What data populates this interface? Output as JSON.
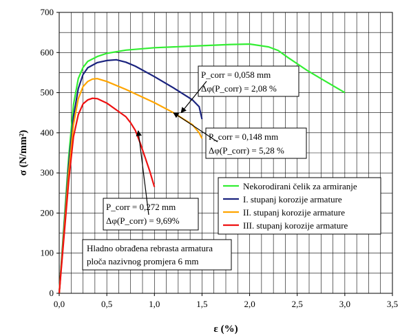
{
  "chart_data": {
    "type": "line",
    "xlabel": "ε (%)",
    "ylabel": "σ (N/mm²)",
    "xlim": [
      0,
      3.5
    ],
    "ylim": [
      0,
      700
    ],
    "xticks": [
      "0,0",
      "0,5",
      "1,0",
      "1,5",
      "2,0",
      "2,5",
      "3,0",
      "3,5"
    ],
    "yticks": [
      "0",
      "100",
      "200",
      "300",
      "400",
      "500",
      "600",
      "700"
    ],
    "grid": true,
    "legend_position": "right-middle",
    "series": [
      {
        "name": "Nekorodirani čelik za armiranje",
        "color": "#33ee33",
        "points": [
          [
            0,
            0
          ],
          [
            0.05,
            170
          ],
          [
            0.1,
            340
          ],
          [
            0.15,
            470
          ],
          [
            0.2,
            535
          ],
          [
            0.25,
            563
          ],
          [
            0.3,
            578
          ],
          [
            0.4,
            590
          ],
          [
            0.5,
            598
          ],
          [
            0.7,
            606
          ],
          [
            1.0,
            612
          ],
          [
            1.5,
            617
          ],
          [
            1.8,
            620
          ],
          [
            2.0,
            621
          ],
          [
            2.2,
            614
          ],
          [
            2.3,
            605
          ],
          [
            2.4,
            588
          ],
          [
            2.6,
            556
          ],
          [
            2.8,
            528
          ],
          [
            3.0,
            500
          ]
        ]
      },
      {
        "name": "I. stupanj korozije armature",
        "color": "#1a237e",
        "points": [
          [
            0,
            0
          ],
          [
            0.05,
            160
          ],
          [
            0.1,
            320
          ],
          [
            0.15,
            440
          ],
          [
            0.2,
            510
          ],
          [
            0.25,
            545
          ],
          [
            0.3,
            562
          ],
          [
            0.4,
            575
          ],
          [
            0.5,
            580
          ],
          [
            0.6,
            582
          ],
          [
            0.7,
            576
          ],
          [
            0.8,
            566
          ],
          [
            1.0,
            540
          ],
          [
            1.2,
            512
          ],
          [
            1.4,
            482
          ],
          [
            1.47,
            465
          ],
          [
            1.5,
            434
          ]
        ]
      },
      {
        "name": "II. stupanj korozije armature",
        "color": "#ffa500",
        "points": [
          [
            0,
            0
          ],
          [
            0.05,
            150
          ],
          [
            0.1,
            300
          ],
          [
            0.15,
            420
          ],
          [
            0.2,
            485
          ],
          [
            0.25,
            515
          ],
          [
            0.3,
            528
          ],
          [
            0.35,
            534
          ],
          [
            0.4,
            535
          ],
          [
            0.5,
            528
          ],
          [
            0.7,
            508
          ],
          [
            1.0,
            475
          ],
          [
            1.2,
            450
          ],
          [
            1.4,
            420
          ],
          [
            1.47,
            400
          ],
          [
            1.5,
            386
          ]
        ]
      },
      {
        "name": "III. stupanj korozije armature",
        "color": "#ee1111",
        "points": [
          [
            0,
            0
          ],
          [
            0.05,
            140
          ],
          [
            0.1,
            280
          ],
          [
            0.15,
            390
          ],
          [
            0.2,
            445
          ],
          [
            0.25,
            472
          ],
          [
            0.3,
            482
          ],
          [
            0.35,
            486
          ],
          [
            0.4,
            485
          ],
          [
            0.5,
            474
          ],
          [
            0.6,
            457
          ],
          [
            0.7,
            440
          ],
          [
            0.75,
            425
          ],
          [
            0.8,
            406
          ],
          [
            0.85,
            375
          ],
          [
            0.9,
            340
          ],
          [
            0.95,
            305
          ],
          [
            1.0,
            265
          ]
        ]
      }
    ],
    "annotations": [
      {
        "lines": [
          "P_corr = 0,058 mm",
          "Δφ(P_corr) = 2,08 %"
        ],
        "arrow_to": [
          1.28,
          450
        ]
      },
      {
        "lines": [
          "P_corr = 0,148 mm",
          "Δφ(P_corr) = 5,28 %"
        ],
        "arrow_to": [
          1.2,
          450
        ]
      },
      {
        "lines": [
          "P_corr = 0,272 mm",
          "Δφ(P_corr) = 9,69%"
        ],
        "arrow_to": [
          0.83,
          405
        ]
      }
    ],
    "note": [
      "Hladno obrađena rebrasta armatura",
      "ploča nazivnog promjera 6 mm"
    ]
  }
}
